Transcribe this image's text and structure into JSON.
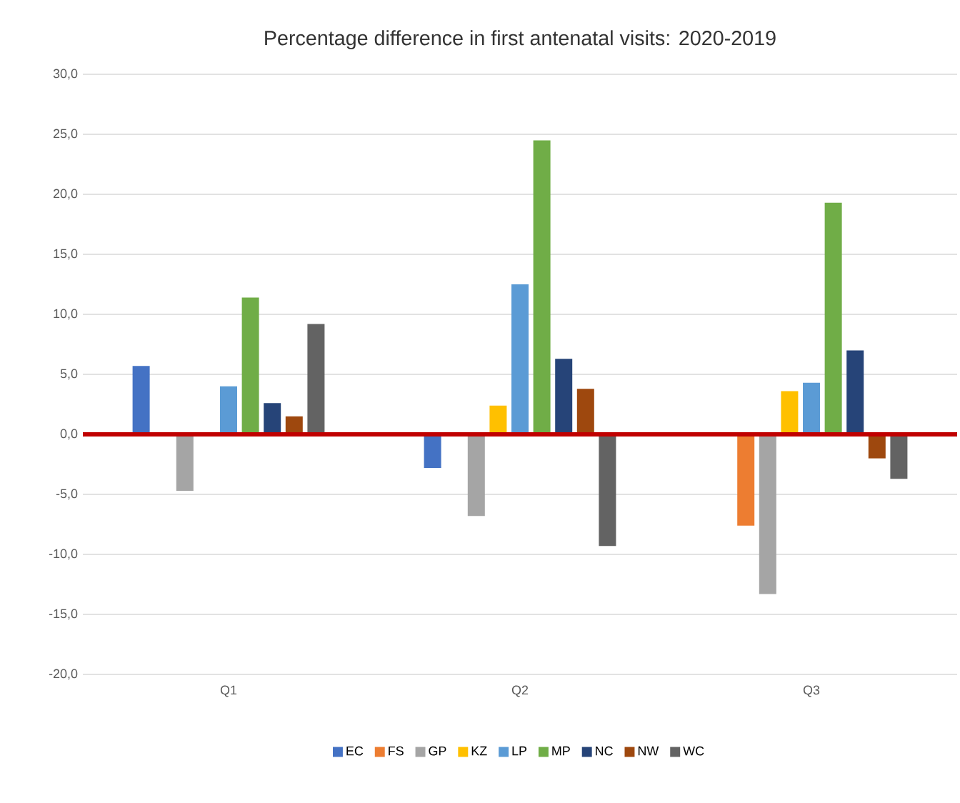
{
  "chart_data": {
    "type": "bar",
    "title": "Percentage difference in first antenatal visits: 2020-2019",
    "categories": [
      "Q1",
      "Q2",
      "Q3"
    ],
    "series": [
      {
        "name": "EC",
        "color": "#4472c4",
        "values": [
          5.7,
          -2.8,
          null
        ]
      },
      {
        "name": "FS",
        "color": "#ed7d31",
        "values": [
          0,
          null,
          -7.6
        ]
      },
      {
        "name": "GP",
        "color": "#a5a5a5",
        "values": [
          -4.7,
          -6.8,
          -13.3
        ]
      },
      {
        "name": "KZ",
        "color": "#ffc000",
        "values": [
          0,
          2.4,
          3.6
        ]
      },
      {
        "name": "LP",
        "color": "#5b9bd5",
        "values": [
          4.0,
          12.5,
          4.3
        ]
      },
      {
        "name": "MP",
        "color": "#70ad47",
        "values": [
          11.4,
          24.5,
          19.3
        ]
      },
      {
        "name": "NC",
        "color": "#264478",
        "values": [
          2.6,
          6.3,
          7.0
        ]
      },
      {
        "name": "NW",
        "color": "#9e480e",
        "values": [
          1.5,
          3.8,
          -2.0
        ]
      },
      {
        "name": "WC",
        "color": "#636363",
        "values": [
          9.2,
          -9.3,
          -3.7
        ]
      }
    ],
    "ylim": [
      -20,
      30
    ],
    "yticks": [
      {
        "value": -20,
        "label": "-20,0"
      },
      {
        "value": -15,
        "label": "-15,0"
      },
      {
        "value": -10,
        "label": "-10,0"
      },
      {
        "value": -5,
        "label": "-5,0"
      },
      {
        "value": 0,
        "label": "0,0"
      },
      {
        "value": 5,
        "label": "5,0"
      },
      {
        "value": 10,
        "label": "10,0"
      },
      {
        "value": 15,
        "label": "15,0"
      },
      {
        "value": 20,
        "label": "20,0"
      },
      {
        "value": 25,
        "label": "25,0"
      },
      {
        "value": 30,
        "label": "30,0"
      }
    ],
    "grid": "y",
    "legend": "bottom",
    "ref_lines": [
      {
        "axis": "y",
        "value": 0,
        "color": "#c00000"
      }
    ]
  }
}
